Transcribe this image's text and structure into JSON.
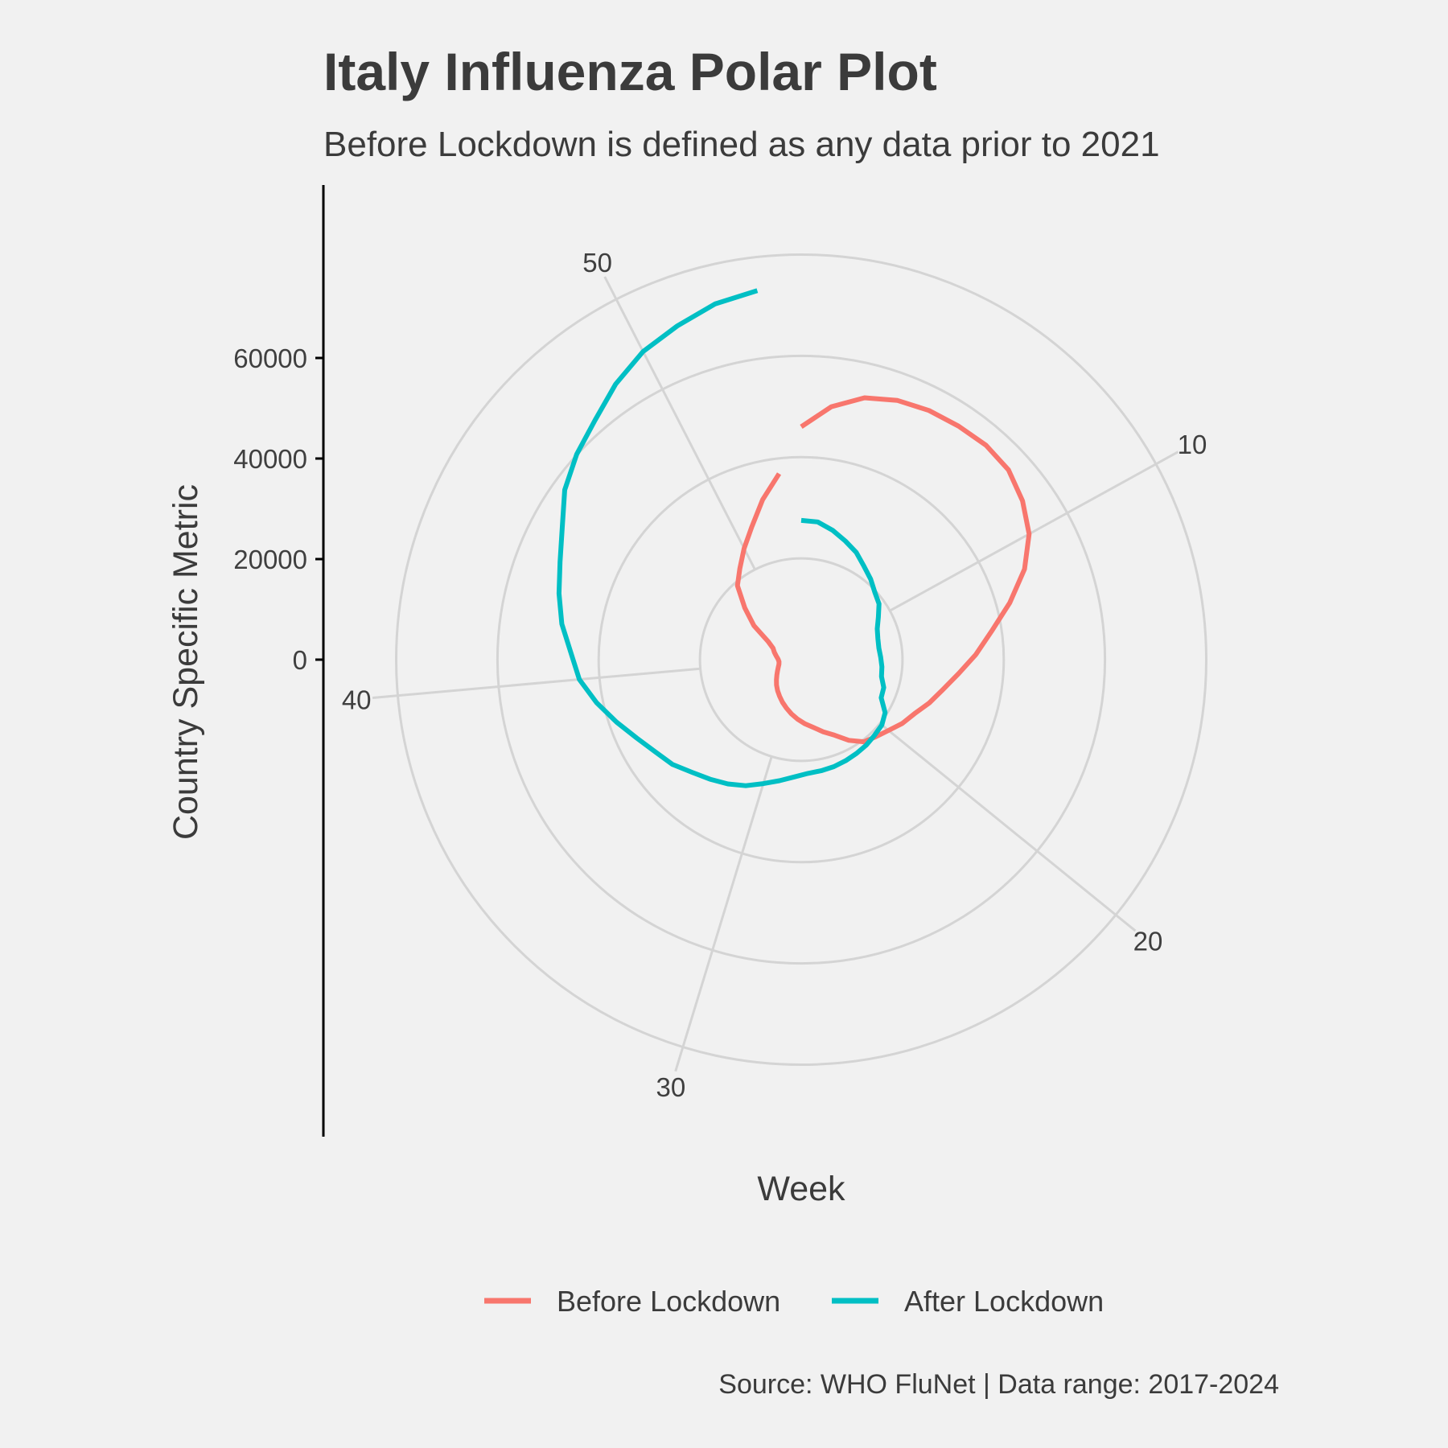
{
  "chart_data": {
    "type": "line",
    "coord": "polar",
    "title": "Italy Influenza Polar Plot",
    "subtitle": "Before Lockdown is defined as any data prior to 2021",
    "xlabel": "Week",
    "ylabel": "Country Specific Metric",
    "caption": "Source: WHO FluNet | Data range: 2017-2024",
    "x_ticks": [
      "10",
      "20",
      "30",
      "40",
      "50"
    ],
    "x_tick_values": [
      10,
      20,
      30,
      40,
      50
    ],
    "xlim": [
      1,
      53
    ],
    "y_ticks": [
      "0",
      "20000",
      "40000",
      "60000"
    ],
    "y_tick_values": [
      0,
      20000,
      40000,
      60000
    ],
    "ylim": [
      -20000,
      65000
    ],
    "legend_position": "bottom",
    "grid": true,
    "colors": {
      "Before Lockdown": "#F8766D",
      "After Lockdown": "#00BFC4",
      "grid": "#d4d4d4",
      "background": "#f1f1f1"
    },
    "series": [
      {
        "name": "Before Lockdown",
        "color": "#F8766D",
        "x": [
          1,
          2,
          3,
          4,
          5,
          6,
          7,
          8,
          9,
          10,
          11,
          12,
          13,
          14,
          15,
          16,
          17,
          18,
          19,
          20,
          21,
          22,
          23,
          24,
          25,
          26,
          27,
          28,
          29,
          30,
          31,
          32,
          33,
          34,
          35,
          36,
          37,
          38,
          39,
          40,
          41,
          42,
          43,
          44,
          45,
          46,
          47,
          48,
          49,
          50,
          51,
          52,
          53
        ],
        "y": [
          26000,
          30300,
          33200,
          34600,
          35300,
          35600,
          35900,
          35500,
          33800,
          31400,
          27600,
          22700,
          18000,
          14500,
          11200,
          8600,
          6700,
          4800,
          3600,
          2200,
          1200,
          400,
          -1500,
          -3700,
          -5100,
          -6400,
          -7300,
          -8200,
          -9100,
          -10000,
          -10800,
          -11600,
          -12300,
          -13000,
          -13700,
          -14300,
          -14800,
          -15200,
          -15500,
          -15600,
          -15400,
          -15000,
          -14500,
          -14000,
          -12500,
          -8500,
          -4900,
          -700,
          1700,
          4700,
          8000,
          12500,
          17000
        ]
      },
      {
        "name": "After Lockdown",
        "color": "#00BFC4",
        "x": [
          1,
          2,
          3,
          4,
          5,
          6,
          7,
          8,
          9,
          10,
          11,
          12,
          13,
          14,
          15,
          16,
          17,
          18,
          19,
          20,
          21,
          22,
          23,
          24,
          25,
          26,
          27,
          28,
          29,
          30,
          31,
          32,
          33,
          34,
          35,
          36,
          37,
          38,
          39,
          40,
          41,
          42,
          43,
          44,
          45,
          46,
          47,
          48,
          49,
          50,
          51,
          52,
          53
        ],
        "y": [
          7500,
          7400,
          6300,
          5000,
          3800,
          2200,
          1000,
          -300,
          -1100,
          -2600,
          -3800,
          -4300,
          -4500,
          -4300,
          -4000,
          -3800,
          -2800,
          -2500,
          -400,
          500,
          800,
          1200,
          1500,
          1800,
          2100,
          2300,
          2500,
          3200,
          4300,
          5600,
          7200,
          8500,
          9700,
          11000,
          12800,
          14100,
          16000,
          18500,
          21300,
          24000,
          25500,
          27800,
          29600,
          31400,
          33900,
          37500,
          40100,
          42400,
          45600,
          48400,
          50300,
          52300,
          53400
        ]
      }
    ]
  }
}
